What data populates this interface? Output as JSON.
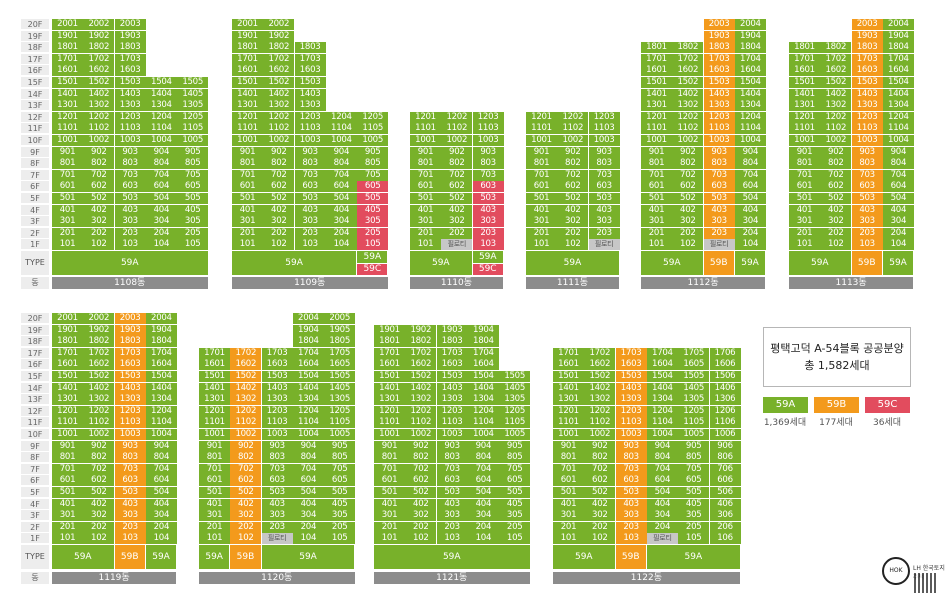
{
  "axis": {
    "floors": [
      "20F",
      "19F",
      "18F",
      "17F",
      "16F",
      "15F",
      "14F",
      "13F",
      "12F",
      "11F",
      "10F",
      "9F",
      "8F",
      "7F",
      "6F",
      "5F",
      "4F",
      "3F",
      "2F",
      "1F"
    ],
    "type_label": "TYPE",
    "dong_label": "동"
  },
  "colors": {
    "59A": "#78b12a",
    "59B": "#f39a1c",
    "59C": "#e24c5e"
  },
  "pilotis_label": "필로티",
  "buildings": [
    {
      "name": "1108동",
      "row": 0,
      "cols": [
        {
          "line": "01",
          "top": 20,
          "bottom": 1
        },
        {
          "line": "02",
          "top": 20,
          "bottom": 1
        },
        {
          "line": "03",
          "top": 20,
          "bottom": 1
        },
        {
          "line": "04",
          "top": 15,
          "bottom": 1
        },
        {
          "line": "05",
          "top": 15,
          "bottom": 1
        }
      ],
      "type": [
        {
          "span": 5,
          "label": "59A",
          "t": "59A"
        }
      ]
    },
    {
      "name": "1109동",
      "row": 0,
      "cols": [
        {
          "line": "01",
          "top": 20,
          "bottom": 1
        },
        {
          "line": "02",
          "top": 20,
          "bottom": 1
        },
        {
          "line": "03",
          "top": 18,
          "bottom": 1
        },
        {
          "line": "04",
          "top": 12,
          "bottom": 1
        },
        {
          "line": "05",
          "top": 12,
          "bottom": 1,
          "red_to": 6
        }
      ],
      "type": [
        {
          "span": 4,
          "label": "59A",
          "t": "59A"
        },
        {
          "span": 1,
          "stack": [
            {
              "label": "59A",
              "t": "59A"
            },
            {
              "label": "59C",
              "t": "59C"
            }
          ]
        }
      ]
    },
    {
      "name": "1110동",
      "row": 0,
      "cols": [
        {
          "line": "01",
          "top": 12,
          "bottom": 1
        },
        {
          "line": "02",
          "top": 12,
          "bottom": 2,
          "pilotis": true
        },
        {
          "line": "03",
          "top": 12,
          "bottom": 1,
          "red_to": 6
        }
      ],
      "type": [
        {
          "span": 2,
          "label": "59A",
          "t": "59A"
        },
        {
          "span": 1,
          "stack": [
            {
              "label": "59A",
              "t": "59A"
            },
            {
              "label": "59C",
              "t": "59C"
            }
          ]
        }
      ]
    },
    {
      "name": "1111동",
      "row": 0,
      "cols": [
        {
          "line": "01",
          "top": 12,
          "bottom": 1
        },
        {
          "line": "02",
          "top": 12,
          "bottom": 1
        },
        {
          "line": "03",
          "top": 12,
          "bottom": 2,
          "pilotis": true
        }
      ],
      "type": [
        {
          "span": 3,
          "label": "59A",
          "t": "59A"
        }
      ]
    },
    {
      "name": "1112동",
      "row": 0,
      "cols": [
        {
          "line": "01",
          "top": 18,
          "bottom": 1
        },
        {
          "line": "02",
          "top": 18,
          "bottom": 1
        },
        {
          "line": "03",
          "top": 20,
          "bottom": 2,
          "pilotis": true,
          "orange": true
        },
        {
          "line": "04",
          "top": 20,
          "bottom": 1
        }
      ],
      "type": [
        {
          "span": 2,
          "label": "59A",
          "t": "59A"
        },
        {
          "span": 1,
          "label": "59B",
          "t": "59B"
        },
        {
          "span": 1,
          "label": "59A",
          "t": "59A"
        }
      ]
    },
    {
      "name": "1113동",
      "row": 0,
      "cols": [
        {
          "line": "01",
          "top": 18,
          "bottom": 1
        },
        {
          "line": "02",
          "top": 18,
          "bottom": 1
        },
        {
          "line": "03",
          "top": 20,
          "bottom": 1,
          "orange": true
        },
        {
          "line": "04",
          "top": 20,
          "bottom": 1
        }
      ],
      "type": [
        {
          "span": 2,
          "label": "59A",
          "t": "59A"
        },
        {
          "span": 1,
          "label": "59B",
          "t": "59B"
        },
        {
          "span": 1,
          "label": "59A",
          "t": "59A"
        }
      ]
    },
    {
      "name": "1119동",
      "row": 1,
      "cols": [
        {
          "line": "01",
          "top": 20,
          "bottom": 1
        },
        {
          "line": "02",
          "top": 20,
          "bottom": 1
        },
        {
          "line": "03",
          "top": 20,
          "bottom": 1,
          "orange": true
        },
        {
          "line": "04",
          "top": 20,
          "bottom": 1
        }
      ],
      "type": [
        {
          "span": 2,
          "label": "59A",
          "t": "59A"
        },
        {
          "span": 1,
          "label": "59B",
          "t": "59B"
        },
        {
          "span": 1,
          "label": "59A",
          "t": "59A"
        }
      ]
    },
    {
      "name": "1120동",
      "row": 1,
      "cols": [
        {
          "line": "01",
          "top": 17,
          "bottom": 1
        },
        {
          "line": "02",
          "top": 17,
          "bottom": 1,
          "orange": true
        },
        {
          "line": "03",
          "top": 17,
          "bottom": 2,
          "pilotis": true
        },
        {
          "line": "04",
          "top": 20,
          "bottom": 1
        },
        {
          "line": "05",
          "top": 20,
          "bottom": 1
        }
      ],
      "type": [
        {
          "span": 1,
          "label": "59A",
          "t": "59A"
        },
        {
          "span": 1,
          "label": "59B",
          "t": "59B"
        },
        {
          "span": 3,
          "label": "59A",
          "t": "59A"
        }
      ]
    },
    {
      "name": "1121동",
      "row": 1,
      "cols": [
        {
          "line": "01",
          "top": 19,
          "bottom": 1
        },
        {
          "line": "02",
          "top": 19,
          "bottom": 1
        },
        {
          "line": "03",
          "top": 19,
          "bottom": 1
        },
        {
          "line": "04",
          "top": 19,
          "bottom": 1
        },
        {
          "line": "05",
          "top": 15,
          "bottom": 1
        }
      ],
      "type": [
        {
          "span": 5,
          "label": "59A",
          "t": "59A"
        }
      ]
    },
    {
      "name": "1122동",
      "row": 1,
      "cols": [
        {
          "line": "01",
          "top": 17,
          "bottom": 1
        },
        {
          "line": "02",
          "top": 17,
          "bottom": 1
        },
        {
          "line": "03",
          "top": 17,
          "bottom": 1,
          "orange": true
        },
        {
          "line": "04",
          "top": 17,
          "bottom": 2,
          "pilotis": true
        },
        {
          "line": "05",
          "top": 17,
          "bottom": 1
        },
        {
          "line": "06",
          "top": 17,
          "bottom": 1
        }
      ],
      "type": [
        {
          "span": 2,
          "label": "59A",
          "t": "59A"
        },
        {
          "span": 1,
          "label": "59B",
          "t": "59B"
        },
        {
          "span": 3,
          "label": "59A",
          "t": "59A"
        }
      ]
    }
  ],
  "info": {
    "title": "평택고덕 A-54블록 공공분양",
    "total": "총 1,582세대"
  },
  "legend": [
    {
      "label": "59A",
      "count": "1,369세대",
      "t": "59A"
    },
    {
      "label": "59B",
      "count": "177세대",
      "t": "59B"
    },
    {
      "label": "59C",
      "count": "36세대",
      "t": "59C"
    }
  ],
  "logo": {
    "text": "LH 한국토지주택",
    "mark": "HOK"
  }
}
